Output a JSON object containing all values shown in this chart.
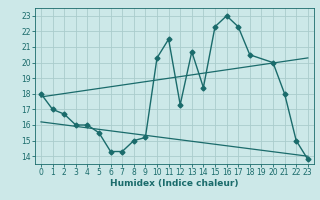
{
  "xlabel": "Humidex (Indice chaleur)",
  "ylabel": "",
  "bg_color": "#cce8e8",
  "grid_color": "#aacccc",
  "line_color": "#1a6b6b",
  "xlim": [
    -0.5,
    23.5
  ],
  "ylim": [
    13.5,
    23.5
  ],
  "xticks": [
    0,
    1,
    2,
    3,
    4,
    5,
    6,
    7,
    8,
    9,
    10,
    11,
    12,
    13,
    14,
    15,
    16,
    17,
    18,
    19,
    20,
    21,
    22,
    23
  ],
  "yticks": [
    14,
    15,
    16,
    17,
    18,
    19,
    20,
    21,
    22,
    23
  ],
  "curve_x": [
    0,
    1,
    2,
    3,
    4,
    5,
    6,
    7,
    8,
    9,
    10,
    11,
    12,
    13,
    14,
    15,
    16,
    17,
    18,
    20,
    21,
    22,
    23
  ],
  "curve_y": [
    18,
    17,
    16.7,
    16,
    16,
    15.5,
    14.3,
    14.3,
    15.0,
    15.2,
    20.3,
    21.5,
    17.3,
    20.7,
    18.4,
    22.3,
    23.0,
    22.3,
    20.5,
    20.0,
    18.0,
    15.0,
    13.8
  ],
  "trend1_x": [
    0,
    23
  ],
  "trend1_y": [
    17.8,
    20.3
  ],
  "trend2_x": [
    0,
    23
  ],
  "trend2_y": [
    16.2,
    14.0
  ]
}
